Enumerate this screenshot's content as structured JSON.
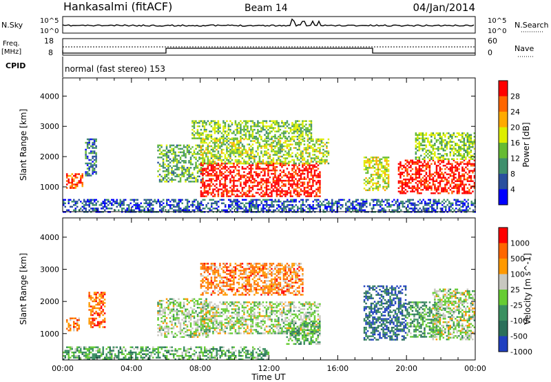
{
  "header": {
    "station": "Hankasalmi (fitACF)",
    "beam": "Beam 14",
    "date": "04/Jan/2014"
  },
  "noise_panel": {
    "left_label": "N.Sky",
    "right_label": "N.Search",
    "left_ticks": [
      "10^5",
      "10^0"
    ],
    "right_ticks": [
      "10^5",
      "10^0"
    ]
  },
  "freq_panel": {
    "left_label_1": "Freq.",
    "left_label_2": "[MHz]",
    "right_label": "Nave",
    "left_ticks": [
      "18",
      "8"
    ],
    "right_ticks": [
      "60",
      "0"
    ]
  },
  "cpid": {
    "label": "CPID",
    "text": "normal (fast stereo) 153"
  },
  "colors": {
    "power_scale": [
      "#0000ff",
      "#2a4f9e",
      "#3f8f6c",
      "#66bb33",
      "#ddee00",
      "#ffaa00",
      "#ff6600",
      "#ff0000"
    ],
    "velocity_scale": [
      "#2040c0",
      "#2a6f5a",
      "#3a9060",
      "#66cc33",
      "#c8c8c0",
      "#ff9900",
      "#ff6600",
      "#ff0000"
    ]
  },
  "chart_data": [
    {
      "type": "heatmap",
      "name": "power",
      "ylabel": "Slant Range [km]",
      "x_range_hours": [
        0,
        24
      ],
      "ylim": [
        180,
        4600
      ],
      "y_ticks": [
        1000,
        2000,
        3000,
        4000
      ],
      "x_ticks": [
        "00:00",
        "04:00",
        "08:00",
        "12:00",
        "16:00",
        "20:00",
        "00:00"
      ],
      "colorbar": {
        "label": "Power [dB]",
        "ticks": [
          "28",
          "24",
          "20",
          "16",
          "12",
          "8",
          "4"
        ]
      },
      "regions": [
        {
          "t0": 0.2,
          "t1": 1.2,
          "r0": 950,
          "r1": 1450,
          "level": 0.85
        },
        {
          "t0": 1.3,
          "t1": 2.0,
          "r0": 1400,
          "r1": 2600,
          "level": 0.25
        },
        {
          "t0": 5.5,
          "t1": 8.2,
          "r0": 1200,
          "r1": 2400,
          "level": 0.4
        },
        {
          "t0": 8.0,
          "t1": 15.0,
          "r0": 700,
          "r1": 1800,
          "level": 0.95
        },
        {
          "t0": 8.0,
          "t1": 15.5,
          "r0": 1800,
          "r1": 2600,
          "level": 0.5
        },
        {
          "t0": 7.5,
          "t1": 14.5,
          "r0": 2600,
          "r1": 3200,
          "level": 0.45
        },
        {
          "t0": 17.5,
          "t1": 19.0,
          "r0": 900,
          "r1": 2000,
          "level": 0.55
        },
        {
          "t0": 19.5,
          "t1": 24.0,
          "r0": 800,
          "r1": 1900,
          "level": 0.95
        },
        {
          "t0": 20.5,
          "t1": 24.0,
          "r0": 1900,
          "r1": 2800,
          "level": 0.45
        },
        {
          "t0": 0.0,
          "t1": 24.0,
          "r0": 200,
          "r1": 600,
          "level": 0.2
        }
      ]
    },
    {
      "type": "heatmap",
      "name": "velocity",
      "ylabel": "Slant Range [km]",
      "xlabel": "Time UT",
      "x_range_hours": [
        0,
        24
      ],
      "ylim": [
        180,
        4600
      ],
      "y_ticks": [
        1000,
        2000,
        3000,
        4000
      ],
      "x_ticks": [
        "00:00",
        "04:00",
        "08:00",
        "12:00",
        "16:00",
        "20:00",
        "00:00"
      ],
      "colorbar": {
        "label": "Velocity [m s^-1]",
        "ticks": [
          "1000",
          "500",
          "100",
          "25",
          "-25",
          "-100",
          "-500",
          "-1000"
        ]
      },
      "regions": [
        {
          "t0": 0.2,
          "t1": 1.0,
          "r0": 1100,
          "r1": 1500,
          "level": 0.75
        },
        {
          "t0": 1.5,
          "t1": 2.5,
          "r0": 1200,
          "r1": 2300,
          "level": 0.8
        },
        {
          "t0": 5.5,
          "t1": 8.5,
          "r0": 900,
          "r1": 2100,
          "level": 0.5
        },
        {
          "t0": 8.0,
          "t1": 15.0,
          "r0": 1000,
          "r1": 2000,
          "level": 0.5
        },
        {
          "t0": 8.0,
          "t1": 14.0,
          "r0": 2200,
          "r1": 3200,
          "level": 0.75
        },
        {
          "t0": 13.0,
          "t1": 15.0,
          "r0": 700,
          "r1": 1400,
          "level": 0.37
        },
        {
          "t0": 17.5,
          "t1": 20.0,
          "r0": 800,
          "r1": 2500,
          "level": 0.15
        },
        {
          "t0": 20.0,
          "t1": 22.0,
          "r0": 900,
          "r1": 2000,
          "level": 0.35
        },
        {
          "t0": 21.5,
          "t1": 24.0,
          "r0": 800,
          "r1": 2400,
          "level": 0.5
        },
        {
          "t0": 0.0,
          "t1": 12.0,
          "r0": 200,
          "r1": 600,
          "level": 0.37
        }
      ]
    }
  ]
}
